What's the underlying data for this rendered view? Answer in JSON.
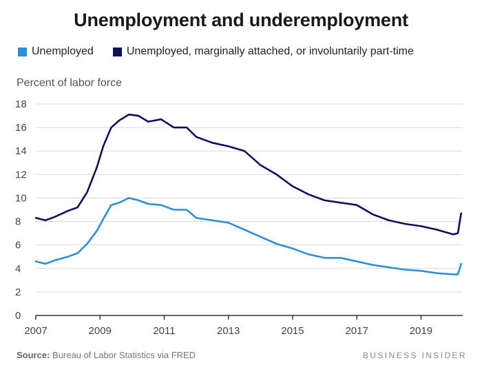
{
  "title": "Unemployment and underemployment",
  "source_label": "Source:",
  "source_text": "Bureau of Labor Statistics via FRED",
  "brand": "BUSINESS INSIDER",
  "colors": {
    "unemployed": "#2b8fd8",
    "u6": "#0d0f5a",
    "grid": "#d9d9d9",
    "axis": "#333333"
  },
  "chart_data": {
    "type": "line",
    "ylabel": "Percent of labor force",
    "xlabel": "",
    "xlim": [
      2007,
      2020.3
    ],
    "ylim": [
      0,
      18
    ],
    "xticks": [
      2007,
      2009,
      2011,
      2013,
      2015,
      2017,
      2019
    ],
    "yticks": [
      0,
      2,
      4,
      6,
      8,
      10,
      12,
      14,
      16,
      18
    ],
    "legend": "top-left",
    "grid": true,
    "series": [
      {
        "name": "Unemployed",
        "x": [
          2007.0,
          2007.3,
          2007.6,
          2008.0,
          2008.3,
          2008.6,
          2008.9,
          2009.1,
          2009.35,
          2009.6,
          2009.9,
          2010.2,
          2010.5,
          2010.9,
          2011.3,
          2011.7,
          2012.0,
          2012.5,
          2013.0,
          2013.5,
          2014.0,
          2014.5,
          2015.0,
          2015.5,
          2016.0,
          2016.5,
          2017.0,
          2017.5,
          2018.0,
          2018.5,
          2019.0,
          2019.5,
          2020.0,
          2020.15,
          2020.25
        ],
        "values": [
          4.6,
          4.4,
          4.7,
          5.0,
          5.3,
          6.1,
          7.2,
          8.2,
          9.4,
          9.6,
          10.0,
          9.8,
          9.5,
          9.4,
          9.0,
          9.0,
          8.3,
          8.1,
          7.9,
          7.3,
          6.7,
          6.1,
          5.7,
          5.2,
          4.9,
          4.9,
          4.6,
          4.3,
          4.1,
          3.9,
          3.8,
          3.6,
          3.5,
          3.5,
          4.4
        ]
      },
      {
        "name": "Unemployed, marginally attached, or involuntarily part-time",
        "x": [
          2007.0,
          2007.3,
          2007.6,
          2008.0,
          2008.3,
          2008.6,
          2008.9,
          2009.1,
          2009.35,
          2009.6,
          2009.9,
          2010.2,
          2010.5,
          2010.9,
          2011.3,
          2011.7,
          2012.0,
          2012.5,
          2013.0,
          2013.5,
          2014.0,
          2014.5,
          2015.0,
          2015.5,
          2016.0,
          2016.5,
          2017.0,
          2017.5,
          2018.0,
          2018.5,
          2019.0,
          2019.5,
          2020.0,
          2020.15,
          2020.25
        ],
        "values": [
          8.3,
          8.1,
          8.4,
          8.9,
          9.2,
          10.5,
          12.6,
          14.4,
          16.0,
          16.6,
          17.1,
          17.0,
          16.5,
          16.7,
          16.0,
          16.0,
          15.2,
          14.7,
          14.4,
          14.0,
          12.8,
          12.0,
          11.0,
          10.3,
          9.8,
          9.6,
          9.4,
          8.6,
          8.1,
          7.8,
          7.6,
          7.3,
          6.9,
          7.0,
          8.7
        ]
      }
    ]
  }
}
